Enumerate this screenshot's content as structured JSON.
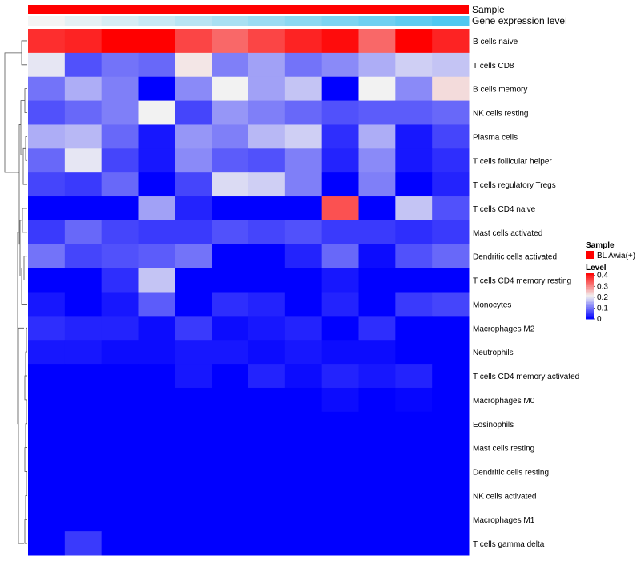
{
  "chart_data": {
    "type": "heatmap",
    "title": "",
    "annotation_rows": [
      {
        "label": "Sample",
        "color": "#ff0000"
      },
      {
        "label": "Gene expression level",
        "gradient_from": "#f4f4f4",
        "gradient_to": "#50c8f0"
      }
    ],
    "rows": [
      "B cells naive",
      "T cells CD8",
      "B cells memory",
      "NK cells resting",
      "Plasma cells",
      "T cells follicular helper",
      "T cells regulatory  Tregs",
      "T cells CD4 naive",
      "Mast cells activated",
      "Dendritic cells activated",
      "T cells CD4 memory resting",
      "Monocytes",
      "Macrophages M2",
      "Neutrophils",
      "T cells CD4 memory activated",
      "Macrophages M0",
      "Eosinophils",
      "Mast cells resting",
      "Dendritic cells resting",
      "NK cells activated",
      "Macrophages M1",
      "T cells gamma delta"
    ],
    "num_columns": 12,
    "values": [
      [
        0.38,
        0.39,
        0.42,
        0.42,
        0.36,
        0.33,
        0.36,
        0.39,
        0.41,
        0.33,
        0.42,
        0.39
      ],
      [
        0.2,
        0.07,
        0.1,
        0.09,
        0.22,
        0.11,
        0.14,
        0.1,
        0.12,
        0.15,
        0.18,
        0.17
      ],
      [
        0.1,
        0.15,
        0.11,
        0.0,
        0.12,
        0.21,
        0.14,
        0.17,
        0.0,
        0.21,
        0.12,
        0.23
      ],
      [
        0.07,
        0.09,
        0.11,
        0.21,
        0.06,
        0.13,
        0.11,
        0.09,
        0.07,
        0.08,
        0.08,
        0.09
      ],
      [
        0.15,
        0.16,
        0.09,
        0.02,
        0.13,
        0.11,
        0.16,
        0.18,
        0.04,
        0.15,
        0.02,
        0.06
      ],
      [
        0.09,
        0.2,
        0.06,
        0.02,
        0.12,
        0.08,
        0.07,
        0.11,
        0.03,
        0.12,
        0.02,
        0.04
      ],
      [
        0.06,
        0.05,
        0.09,
        0.0,
        0.06,
        0.19,
        0.18,
        0.11,
        0.0,
        0.11,
        0.0,
        0.03
      ],
      [
        0.0,
        0.0,
        0.0,
        0.14,
        0.03,
        0.0,
        0.0,
        0.0,
        0.35,
        0.0,
        0.17,
        0.07
      ],
      [
        0.05,
        0.09,
        0.06,
        0.05,
        0.05,
        0.07,
        0.06,
        0.07,
        0.05,
        0.05,
        0.04,
        0.05
      ],
      [
        0.1,
        0.06,
        0.07,
        0.08,
        0.1,
        0.0,
        0.0,
        0.03,
        0.09,
        0.01,
        0.07,
        0.09
      ],
      [
        0.0,
        0.0,
        0.04,
        0.17,
        0.0,
        0.0,
        0.0,
        0.0,
        0.02,
        0.0,
        0.0,
        0.0
      ],
      [
        0.02,
        0.0,
        0.02,
        0.08,
        0.0,
        0.04,
        0.03,
        0.0,
        0.03,
        0.0,
        0.05,
        0.06
      ],
      [
        0.04,
        0.03,
        0.03,
        0.01,
        0.05,
        0.01,
        0.02,
        0.03,
        0.0,
        0.04,
        0.0,
        0.0
      ],
      [
        0.02,
        0.02,
        0.01,
        0.01,
        0.02,
        0.02,
        0.01,
        0.02,
        0.01,
        0.01,
        0.0,
        0.0
      ],
      [
        0.0,
        0.0,
        0.0,
        0.0,
        0.02,
        0.0,
        0.03,
        0.01,
        0.03,
        0.02,
        0.03,
        0.0
      ],
      [
        0.0,
        0.0,
        0.0,
        0.0,
        0.0,
        0.0,
        0.0,
        0.0,
        0.01,
        0.0,
        0.005,
        0.0
      ],
      [
        0,
        0,
        0,
        0,
        0,
        0,
        0,
        0,
        0,
        0,
        0,
        0
      ],
      [
        0,
        0,
        0,
        0,
        0,
        0,
        0,
        0,
        0,
        0,
        0,
        0
      ],
      [
        0,
        0,
        0,
        0,
        0,
        0,
        0,
        0,
        0,
        0,
        0,
        0
      ],
      [
        0,
        0,
        0,
        0,
        0,
        0,
        0,
        0,
        0,
        0,
        0,
        0
      ],
      [
        0,
        0,
        0,
        0,
        0,
        0,
        0,
        0,
        0,
        0,
        0,
        0
      ],
      [
        0.0,
        0.05,
        0,
        0,
        0,
        0,
        0,
        0,
        0,
        0,
        0,
        0
      ]
    ],
    "color_scale": {
      "min": 0,
      "max": 0.42,
      "stops": [
        {
          "value": 0,
          "color": "#0000ff"
        },
        {
          "value": 0.21,
          "color": "#f2f2f2"
        },
        {
          "value": 0.42,
          "color": "#ff0000"
        }
      ]
    },
    "legend": {
      "sample_title": "Sample",
      "sample_entry": "BL Awia(+)",
      "sample_color": "#ff0000",
      "level_title": "Level",
      "level_ticks": [
        0.4,
        0.3,
        0.2,
        0.1,
        0
      ],
      "level_tick_labels": [
        "0.4",
        "0.3",
        "0.2",
        "0.1",
        "0"
      ],
      "placement": "right"
    },
    "dendrogram": {
      "side": "left",
      "description": "hierarchical clustering of rows"
    }
  }
}
